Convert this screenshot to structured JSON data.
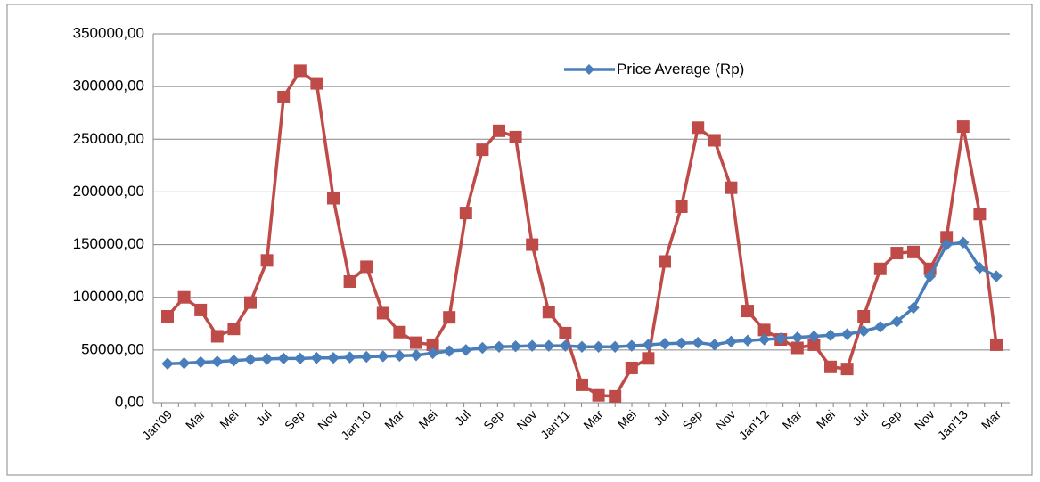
{
  "chart_data": {
    "type": "line",
    "categories": [
      "Jan'09",
      null,
      "Mar",
      null,
      "Mei",
      null,
      "Jul",
      null,
      "Sep",
      null,
      "Nov",
      null,
      "Jan'10",
      null,
      "Mar",
      null,
      "Mei",
      null,
      "Jul",
      null,
      "Sep",
      null,
      "Nov",
      null,
      "Jan'11",
      null,
      "Mar",
      null,
      "Mei",
      null,
      "Jul",
      null,
      "Sep",
      null,
      "Nov",
      null,
      "Jan'12",
      null,
      "Mar",
      null,
      "Mei",
      null,
      "Jul",
      null,
      "Sep",
      null,
      "Nov",
      null,
      "Jan'13",
      null,
      "Mar"
    ],
    "series": [
      {
        "name": "Price Average (Rp)",
        "color": "#4a7ebb",
        "marker": "diamond",
        "values": [
          37000,
          37500,
          38500,
          39000,
          40000,
          41000,
          41500,
          42000,
          42000,
          42500,
          42500,
          43000,
          43500,
          44000,
          44500,
          45000,
          47000,
          49000,
          50000,
          52000,
          53000,
          53500,
          54000,
          54000,
          54000,
          53000,
          53000,
          53000,
          54000,
          55000,
          56000,
          56500,
          57000,
          55000,
          58000,
          59000,
          60000,
          61000,
          62000,
          63000,
          64000,
          65000,
          68000,
          72000,
          77000,
          90000,
          120000,
          150000,
          152000,
          128000,
          120000
        ]
      },
      {
        "color": "#be4b48",
        "marker": "square",
        "values": [
          82000,
          100000,
          88000,
          63000,
          70000,
          95000,
          135000,
          290000,
          315000,
          303000,
          194000,
          115000,
          129000,
          85000,
          67000,
          57000,
          55000,
          81000,
          180000,
          240000,
          258000,
          252000,
          150000,
          86000,
          66000,
          17000,
          7000,
          6000,
          33000,
          42000,
          134000,
          186000,
          261000,
          249000,
          204000,
          87000,
          69000,
          60000,
          52000,
          55000,
          34000,
          32000,
          82000,
          127000,
          142000,
          143000,
          127000,
          157000,
          262000,
          179000,
          55000
        ]
      }
    ],
    "ylim": [
      0,
      350000
    ],
    "yticks": [
      {
        "value": 0,
        "label": "0,00"
      },
      {
        "value": 50000,
        "label": "50000,00"
      },
      {
        "value": 100000,
        "label": "100000,00"
      },
      {
        "value": 150000,
        "label": "150000,00"
      },
      {
        "value": 200000,
        "label": "200000,00"
      },
      {
        "value": 250000,
        "label": "250000,00"
      },
      {
        "value": 300000,
        "label": "300000,00"
      },
      {
        "value": 350000,
        "label": "350000,00"
      }
    ],
    "grid": true
  }
}
